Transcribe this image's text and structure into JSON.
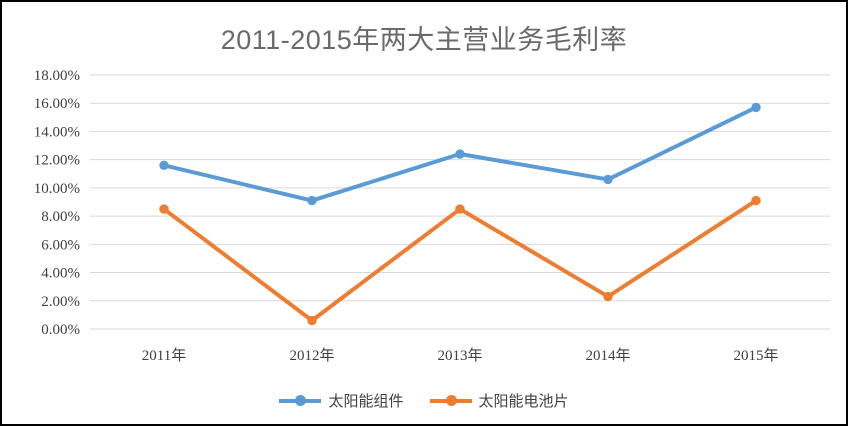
{
  "chart_data": {
    "type": "line",
    "title": "2011-2015年两大主营业务毛利率",
    "categories": [
      "2011年",
      "2012年",
      "2013年",
      "2014年",
      "2015年"
    ],
    "series": [
      {
        "name": "太阳能组件",
        "color": "#5B9BD5",
        "values": [
          11.6,
          9.1,
          12.4,
          10.6,
          15.7
        ]
      },
      {
        "name": "太阳能电池片",
        "color": "#ED7D31",
        "values": [
          8.5,
          0.6,
          8.5,
          2.3,
          9.1
        ]
      }
    ],
    "units": "percent",
    "y_axis": {
      "min": 0,
      "max": 18,
      "step": 2,
      "tick_labels": [
        "0.00%",
        "2.00%",
        "4.00%",
        "6.00%",
        "8.00%",
        "10.00%",
        "12.00%",
        "14.00%",
        "16.00%",
        "18.00%"
      ]
    },
    "grid": "horizontal-only",
    "legend_position": "bottom",
    "marker": "circle",
    "colors": {
      "gridline": "#D9D9D9",
      "title_text": "#6A6A6A",
      "axis_text": "#404040",
      "border": "#000000",
      "background": "#FFFFFF"
    }
  }
}
